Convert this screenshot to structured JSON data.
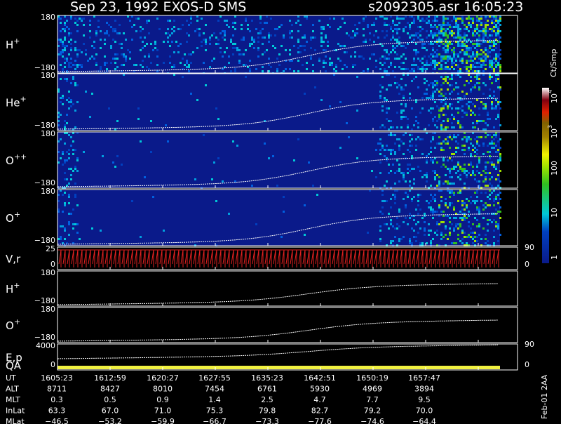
{
  "header": {
    "title": "Sep 23, 1992   EXOS-D SMS",
    "file_time": "s2092305.asr  16:05:23"
  },
  "panels": [
    {
      "label": "H",
      "sup": "+",
      "left_ticks": [
        "180",
        "−180"
      ]
    },
    {
      "label": "He",
      "sup": "+",
      "left_ticks": [
        "180",
        "−180"
      ]
    },
    {
      "label": "O",
      "sup": "++",
      "left_ticks": [
        "180",
        "−180"
      ]
    },
    {
      "label": "O",
      "sup": "+",
      "left_ticks": [
        "180",
        "−180"
      ]
    },
    {
      "label": "V,r",
      "left_ticks": [
        "25",
        "0"
      ],
      "right_ticks": [
        "90",
        "0"
      ]
    },
    {
      "label": "H",
      "sup": "+",
      "left_ticks": [
        "180",
        "−180"
      ]
    },
    {
      "label": "O",
      "sup": "+",
      "left_ticks": [
        "180",
        "−180"
      ]
    },
    {
      "label": "E,p",
      "label2": "QA",
      "left_ticks": [
        "4000",
        "0"
      ],
      "right_ticks": [
        "90",
        "0"
      ]
    }
  ],
  "colorbar": {
    "unit": "Ct/Smp",
    "ticks": [
      {
        "base": "10",
        "exp": "4"
      },
      {
        "base": "10",
        "exp": "3"
      },
      {
        "base": "100"
      },
      {
        "base": "10"
      },
      {
        "base": "1"
      }
    ]
  },
  "table": {
    "rows": [
      [
        "UT",
        "1605:23",
        "1612:59",
        "1620:27",
        "1627:55",
        "1635:23",
        "1642:51",
        "1650:19",
        "1657:47"
      ],
      [
        "ALT",
        "8711",
        "8427",
        "8010",
        "7454",
        "6761",
        "5930",
        "4969",
        "3894"
      ],
      [
        "MLT",
        "0.3",
        "0.5",
        "0.9",
        "1.4",
        "2.5",
        "4.7",
        "7.7",
        "9.5"
      ],
      [
        "InLat",
        "63.3",
        "67.0",
        "71.0",
        "75.3",
        "79.8",
        "82.7",
        "79.2",
        "70.0"
      ],
      [
        "MLat",
        "−46.5",
        "−53.2",
        "−59.9",
        "−66.7",
        "−73.3",
        "−77.6",
        "−74.6",
        "−64.4"
      ]
    ]
  },
  "footer": "Feb-01 2AA"
}
